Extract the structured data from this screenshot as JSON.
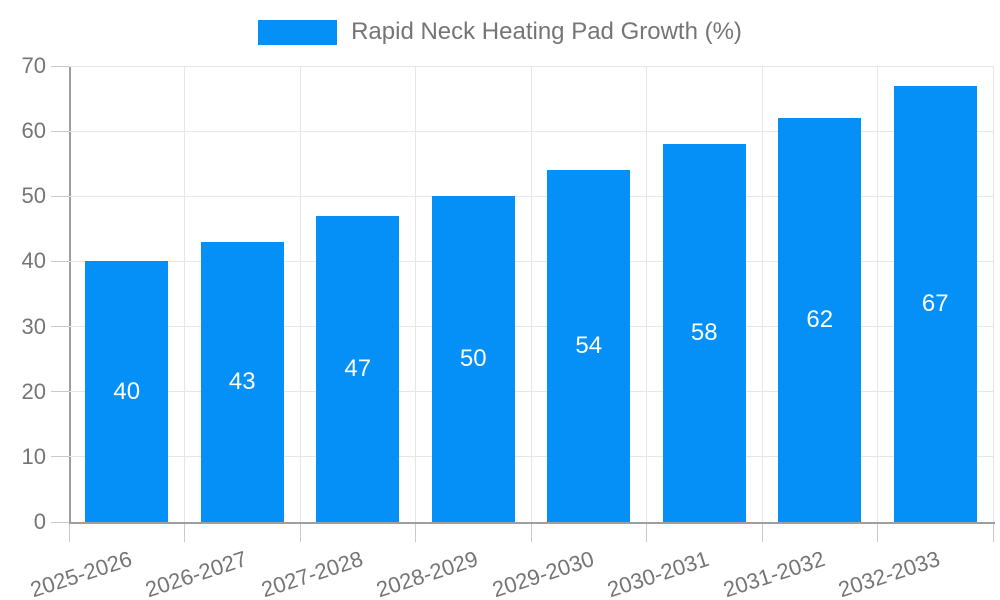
{
  "chart_data": {
    "type": "bar",
    "title": "Rapid Neck Heating Pad Growth (%)",
    "categories": [
      "2025-2026",
      "2026-2027",
      "2027-2028",
      "2028-2029",
      "2029-2030",
      "2030-2031",
      "2031-2032",
      "2032-2033"
    ],
    "values": [
      40,
      43,
      47,
      50,
      54,
      58,
      62,
      67
    ],
    "bar_labels": [
      "40",
      "43",
      "47",
      "50",
      "54",
      "58",
      "62",
      "67"
    ],
    "xlabel": "",
    "ylabel": "",
    "ylim": [
      0,
      70
    ],
    "yticks": [
      0,
      10,
      20,
      30,
      40,
      50,
      60,
      70
    ],
    "ytick_labels": [
      "0",
      "10",
      "20",
      "30",
      "40",
      "50",
      "60",
      "70"
    ],
    "grid": true,
    "legend_position": "top",
    "x_label_rotation_deg": -18
  },
  "legend": {
    "label": "Rapid Neck Heating Pad Growth (%)"
  },
  "colors": {
    "bar": "#0590f8",
    "bar_label": "#ffffff",
    "grid": "#e6e6e6",
    "axis": "#9e9e9e",
    "tick": "#c9c9c9",
    "text": "#757575",
    "background": "#ffffff"
  }
}
